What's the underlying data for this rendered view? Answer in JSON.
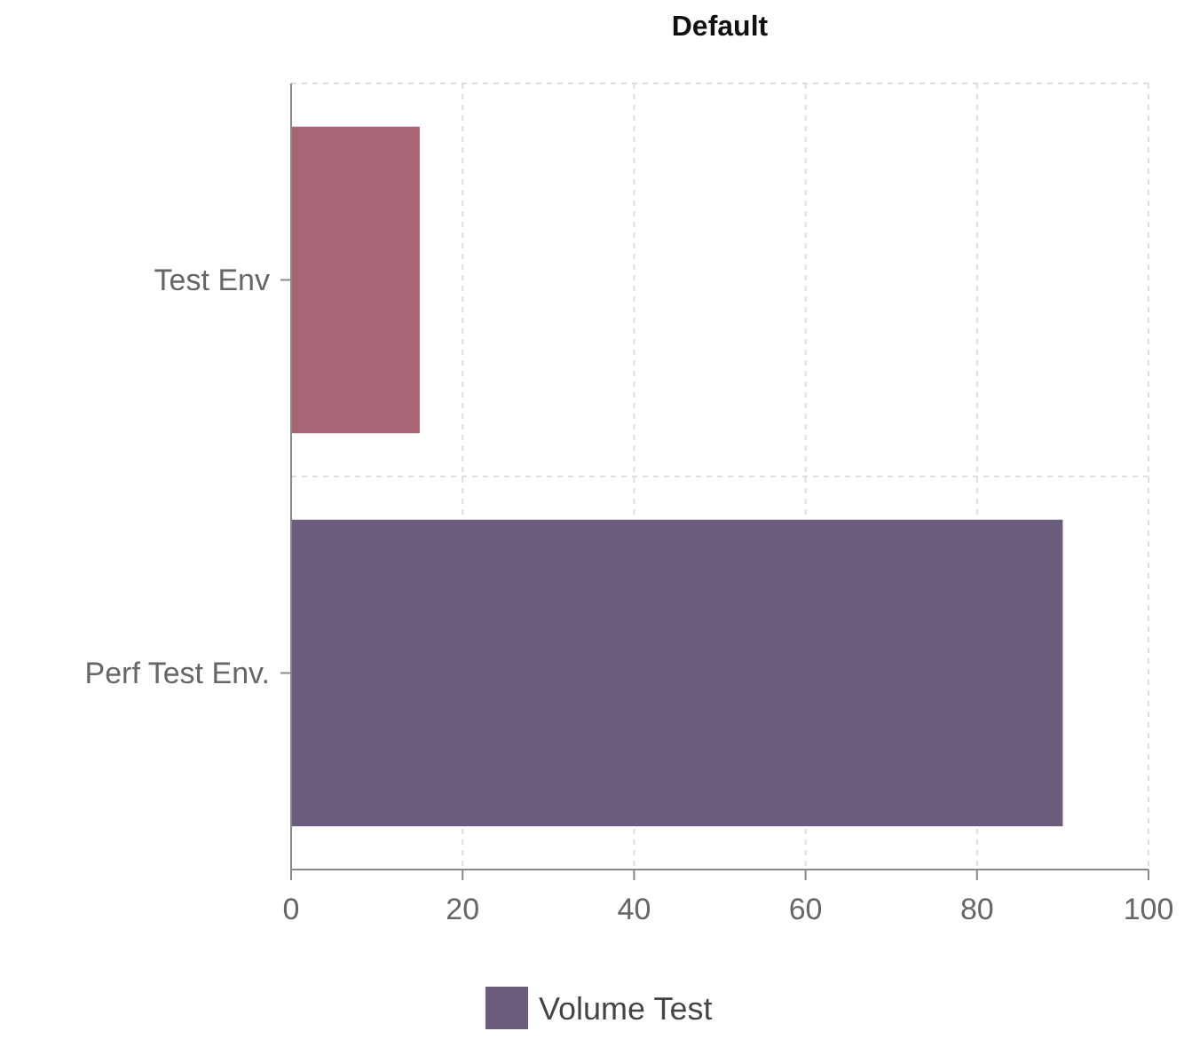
{
  "chart_data": {
    "type": "bar",
    "title": "Default",
    "orientation": "horizontal",
    "categories": [
      "Test Env",
      "Perf Test Env."
    ],
    "series": [
      {
        "name": "Volume Test",
        "color": "#6b5b7d",
        "colors": [
          "#a86576",
          "#6b5b7d"
        ],
        "values": [
          15,
          90
        ]
      }
    ],
    "xlim": [
      0,
      100
    ],
    "xticks": [
      0,
      20,
      40,
      60,
      80,
      100
    ],
    "grid": true,
    "legend": "bottom"
  }
}
